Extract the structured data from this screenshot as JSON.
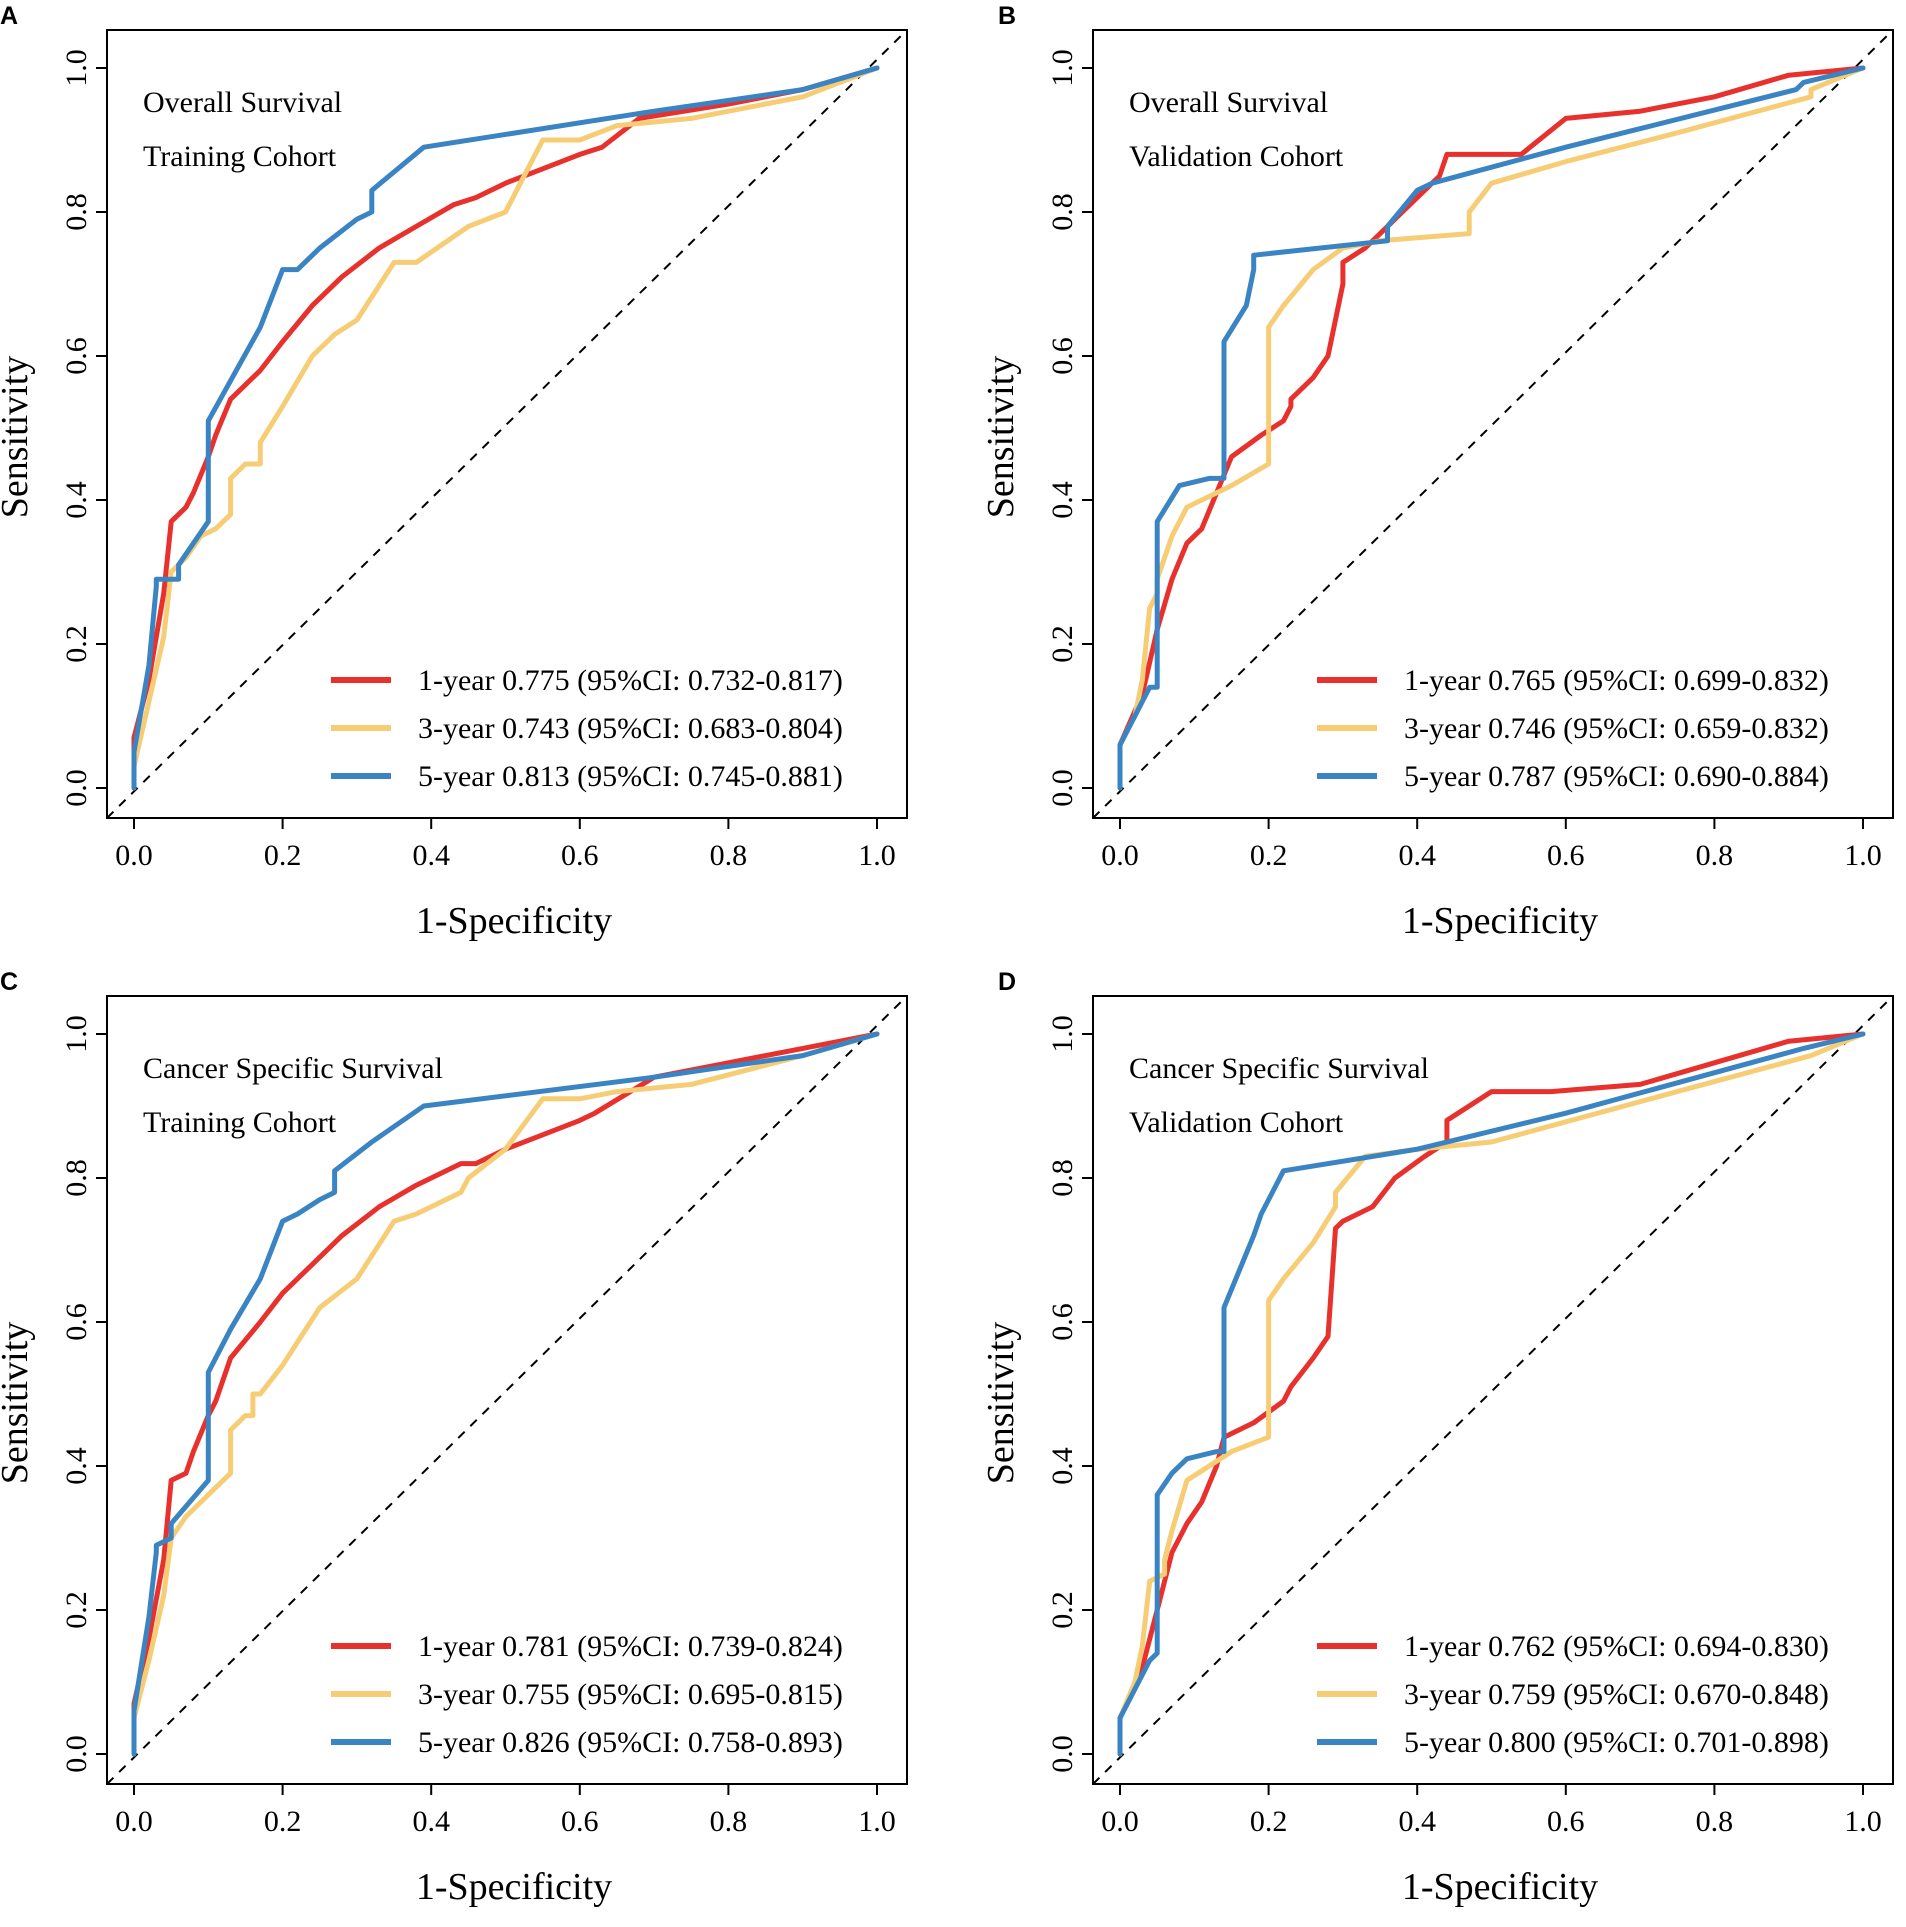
{
  "colors": {
    "1-year": "#e8312d",
    "3-year": "#f6cd75",
    "5-year": "#3a84c4",
    "reference": "#000000"
  },
  "chart_data": [
    {
      "type": "line",
      "panel": "A",
      "title": [
        "Overall Survival",
        "Training Cohort"
      ],
      "xlabel": "1-Specificity",
      "ylabel": "Sensitivity",
      "xlim": [
        0,
        1
      ],
      "ylim": [
        0,
        1
      ],
      "xticks": [
        "0.0",
        "0.2",
        "0.4",
        "0.6",
        "0.8",
        "1.0"
      ],
      "yticks": [
        "0.0",
        "0.2",
        "0.4",
        "0.6",
        "0.8",
        "1.0"
      ],
      "reference_line": "diagonal (dashed)",
      "legend_position": "bottom-right",
      "series": [
        {
          "name": "1-year",
          "label": "1-year 0.775 (95%CI: 0.732-0.817)",
          "x": [
            0,
            0,
            0.02,
            0.04,
            0.05,
            0.07,
            0.08,
            0.1,
            0.11,
            0.13,
            0.15,
            0.17,
            0.2,
            0.24,
            0.28,
            0.33,
            0.38,
            0.43,
            0.46,
            0.5,
            0.55,
            0.6,
            0.63,
            0.68,
            0.8,
            0.9,
            1
          ],
          "y": [
            0,
            0.07,
            0.15,
            0.27,
            0.37,
            0.39,
            0.41,
            0.46,
            0.49,
            0.54,
            0.56,
            0.58,
            0.62,
            0.67,
            0.71,
            0.75,
            0.78,
            0.81,
            0.82,
            0.84,
            0.86,
            0.88,
            0.89,
            0.93,
            0.95,
            0.97,
            1
          ]
        },
        {
          "name": "3-year",
          "label": "3-year 0.743 (95%CI: 0.683-0.804)",
          "x": [
            0,
            0,
            0.02,
            0.04,
            0.05,
            0.07,
            0.09,
            0.11,
            0.13,
            0.13,
            0.15,
            0.17,
            0.17,
            0.2,
            0.24,
            0.27,
            0.3,
            0.35,
            0.38,
            0.45,
            0.5,
            0.52,
            0.55,
            0.6,
            0.65,
            0.75,
            0.9,
            1
          ],
          "y": [
            0,
            0.03,
            0.12,
            0.21,
            0.3,
            0.32,
            0.35,
            0.36,
            0.38,
            0.43,
            0.45,
            0.45,
            0.48,
            0.53,
            0.6,
            0.63,
            0.65,
            0.73,
            0.73,
            0.78,
            0.8,
            0.84,
            0.9,
            0.9,
            0.92,
            0.93,
            0.96,
            1
          ]
        },
        {
          "name": "5-year",
          "label": "5-year 0.813 (95%CI: 0.745-0.881)",
          "x": [
            0,
            0,
            0.02,
            0.03,
            0.03,
            0.06,
            0.06,
            0.1,
            0.1,
            0.17,
            0.2,
            0.22,
            0.25,
            0.3,
            0.32,
            0.32,
            0.39,
            0.7,
            0.9,
            1
          ],
          "y": [
            0,
            0.05,
            0.17,
            0.28,
            0.29,
            0.29,
            0.31,
            0.37,
            0.51,
            0.64,
            0.72,
            0.72,
            0.75,
            0.79,
            0.8,
            0.83,
            0.89,
            0.94,
            0.97,
            1
          ]
        }
      ]
    },
    {
      "type": "line",
      "panel": "B",
      "title": [
        "Overall Survival",
        "Validation Cohort"
      ],
      "xlabel": "1-Specificity",
      "ylabel": "Sensitivity",
      "xlim": [
        0,
        1
      ],
      "ylim": [
        0,
        1
      ],
      "xticks": [
        "0.0",
        "0.2",
        "0.4",
        "0.6",
        "0.8",
        "1.0"
      ],
      "yticks": [
        "0.0",
        "0.2",
        "0.4",
        "0.6",
        "0.8",
        "1.0"
      ],
      "reference_line": "diagonal (dashed)",
      "legend_position": "bottom-right",
      "series": [
        {
          "name": "1-year",
          "label": "1-year 0.765 (95%CI: 0.699-0.832)",
          "x": [
            0,
            0,
            0.03,
            0.05,
            0.07,
            0.09,
            0.11,
            0.13,
            0.15,
            0.19,
            0.22,
            0.23,
            0.23,
            0.26,
            0.28,
            0.3,
            0.3,
            0.33,
            0.36,
            0.4,
            0.43,
            0.44,
            0.48,
            0.54,
            0.6,
            0.7,
            0.8,
            0.9,
            1
          ],
          "y": [
            0,
            0.06,
            0.13,
            0.22,
            0.29,
            0.34,
            0.36,
            0.41,
            0.46,
            0.49,
            0.51,
            0.53,
            0.54,
            0.57,
            0.6,
            0.7,
            0.73,
            0.75,
            0.78,
            0.82,
            0.85,
            0.88,
            0.88,
            0.88,
            0.93,
            0.94,
            0.96,
            0.99,
            1
          ]
        },
        {
          "name": "3-year",
          "label": "3-year 0.746 (95%CI: 0.659-0.832)",
          "x": [
            0,
            0,
            0.02,
            0.03,
            0.04,
            0.05,
            0.05,
            0.07,
            0.09,
            0.15,
            0.2,
            0.2,
            0.22,
            0.26,
            0.3,
            0.35,
            0.47,
            0.47,
            0.5,
            0.6,
            0.75,
            0.93,
            0.93,
            1
          ],
          "y": [
            0,
            0.06,
            0.1,
            0.15,
            0.25,
            0.27,
            0.29,
            0.35,
            0.39,
            0.42,
            0.45,
            0.64,
            0.67,
            0.72,
            0.75,
            0.76,
            0.77,
            0.8,
            0.84,
            0.87,
            0.91,
            0.96,
            0.97,
            1
          ]
        },
        {
          "name": "5-year",
          "label": "5-year 0.787 (95%CI: 0.690-0.884)",
          "x": [
            0,
            0,
            0.04,
            0.05,
            0.05,
            0.08,
            0.12,
            0.13,
            0.14,
            0.14,
            0.17,
            0.18,
            0.18,
            0.36,
            0.36,
            0.4,
            0.42,
            0.6,
            0.91,
            0.92,
            1
          ],
          "y": [
            0,
            0.06,
            0.14,
            0.14,
            0.37,
            0.42,
            0.43,
            0.43,
            0.43,
            0.62,
            0.67,
            0.72,
            0.74,
            0.76,
            0.78,
            0.83,
            0.84,
            0.89,
            0.97,
            0.98,
            1
          ]
        }
      ]
    },
    {
      "type": "line",
      "panel": "C",
      "title": [
        "Cancer Specific Survival",
        "Training Cohort"
      ],
      "xlabel": "1-Specificity",
      "ylabel": "Sensitivity",
      "xlim": [
        0,
        1
      ],
      "ylim": [
        0,
        1
      ],
      "xticks": [
        "0.0",
        "0.2",
        "0.4",
        "0.6",
        "0.8",
        "1.0"
      ],
      "yticks": [
        "0.0",
        "0.2",
        "0.4",
        "0.6",
        "0.8",
        "1.0"
      ],
      "reference_line": "diagonal (dashed)",
      "legend_position": "bottom-right",
      "series": [
        {
          "name": "1-year",
          "label": "1-year 0.781 (95%CI: 0.739-0.824)",
          "x": [
            0,
            0,
            0.02,
            0.04,
            0.05,
            0.07,
            0.08,
            0.1,
            0.11,
            0.13,
            0.17,
            0.2,
            0.24,
            0.28,
            0.33,
            0.38,
            0.44,
            0.46,
            0.5,
            0.55,
            0.6,
            0.62,
            0.7,
            0.8,
            0.9,
            1
          ],
          "y": [
            0,
            0.07,
            0.16,
            0.27,
            0.38,
            0.39,
            0.42,
            0.47,
            0.49,
            0.55,
            0.6,
            0.64,
            0.68,
            0.72,
            0.76,
            0.79,
            0.82,
            0.82,
            0.84,
            0.86,
            0.88,
            0.89,
            0.94,
            0.96,
            0.98,
            1
          ]
        },
        {
          "name": "3-year",
          "label": "3-year 0.755 (95%CI: 0.695-0.815)",
          "x": [
            0,
            0,
            0.02,
            0.04,
            0.05,
            0.07,
            0.09,
            0.11,
            0.13,
            0.13,
            0.15,
            0.16,
            0.16,
            0.17,
            0.2,
            0.25,
            0.3,
            0.35,
            0.38,
            0.44,
            0.45,
            0.5,
            0.55,
            0.6,
            0.65,
            0.75,
            0.9,
            1
          ],
          "y": [
            0,
            0.05,
            0.13,
            0.22,
            0.3,
            0.33,
            0.35,
            0.37,
            0.39,
            0.45,
            0.47,
            0.47,
            0.5,
            0.5,
            0.54,
            0.62,
            0.66,
            0.74,
            0.75,
            0.78,
            0.8,
            0.84,
            0.91,
            0.91,
            0.92,
            0.93,
            0.97,
            1
          ]
        },
        {
          "name": "5-year",
          "label": "5-year 0.826 (95%CI: 0.758-0.893)",
          "x": [
            0,
            0,
            0.02,
            0.03,
            0.03,
            0.05,
            0.05,
            0.1,
            0.1,
            0.13,
            0.17,
            0.2,
            0.22,
            0.25,
            0.27,
            0.27,
            0.32,
            0.39,
            0.7,
            0.9,
            1
          ],
          "y": [
            0,
            0.06,
            0.19,
            0.28,
            0.29,
            0.3,
            0.32,
            0.38,
            0.53,
            0.59,
            0.66,
            0.74,
            0.75,
            0.77,
            0.78,
            0.81,
            0.85,
            0.9,
            0.94,
            0.97,
            1
          ]
        }
      ]
    },
    {
      "type": "line",
      "panel": "D",
      "title": [
        "Cancer Specific Survival",
        "Validation Cohort"
      ],
      "xlabel": "1-Specificity",
      "ylabel": "Sensitivity",
      "xlim": [
        0,
        1
      ],
      "ylim": [
        0,
        1
      ],
      "xticks": [
        "0.0",
        "0.2",
        "0.4",
        "0.6",
        "0.8",
        "1.0"
      ],
      "yticks": [
        "0.0",
        "0.2",
        "0.4",
        "0.6",
        "0.8",
        "1.0"
      ],
      "reference_line": "diagonal (dashed)",
      "legend_position": "bottom-right",
      "series": [
        {
          "name": "1-year",
          "label": "1-year 0.762 (95%CI: 0.694-0.830)",
          "x": [
            0,
            0,
            0.03,
            0.05,
            0.07,
            0.09,
            0.11,
            0.13,
            0.14,
            0.18,
            0.22,
            0.23,
            0.23,
            0.26,
            0.28,
            0.29,
            0.3,
            0.34,
            0.37,
            0.41,
            0.44,
            0.44,
            0.5,
            0.58,
            0.7,
            0.8,
            0.9,
            1
          ],
          "y": [
            0,
            0.05,
            0.12,
            0.2,
            0.28,
            0.32,
            0.35,
            0.4,
            0.44,
            0.46,
            0.49,
            0.51,
            0.51,
            0.55,
            0.58,
            0.73,
            0.74,
            0.76,
            0.8,
            0.83,
            0.85,
            0.88,
            0.92,
            0.92,
            0.93,
            0.96,
            0.99,
            1
          ]
        },
        {
          "name": "3-year",
          "label": "3-year 0.759 (95%CI: 0.670-0.848)",
          "x": [
            0,
            0,
            0.02,
            0.03,
            0.04,
            0.06,
            0.06,
            0.07,
            0.09,
            0.15,
            0.2,
            0.2,
            0.22,
            0.26,
            0.29,
            0.29,
            0.33,
            0.4,
            0.5,
            0.75,
            0.93,
            1
          ],
          "y": [
            0,
            0.05,
            0.1,
            0.15,
            0.24,
            0.25,
            0.27,
            0.31,
            0.38,
            0.42,
            0.44,
            0.63,
            0.66,
            0.71,
            0.76,
            0.78,
            0.83,
            0.84,
            0.85,
            0.92,
            0.97,
            1
          ]
        },
        {
          "name": "5-year",
          "label": "5-year 0.800 (95%CI: 0.701-0.898)",
          "x": [
            0,
            0,
            0.04,
            0.05,
            0.05,
            0.07,
            0.09,
            0.13,
            0.14,
            0.14,
            0.18,
            0.19,
            0.22,
            0.22,
            0.4,
            0.6,
            0.92,
            1
          ],
          "y": [
            0,
            0.05,
            0.13,
            0.14,
            0.36,
            0.39,
            0.41,
            0.42,
            0.42,
            0.62,
            0.72,
            0.75,
            0.81,
            0.81,
            0.84,
            0.89,
            0.98,
            1
          ]
        }
      ]
    }
  ]
}
